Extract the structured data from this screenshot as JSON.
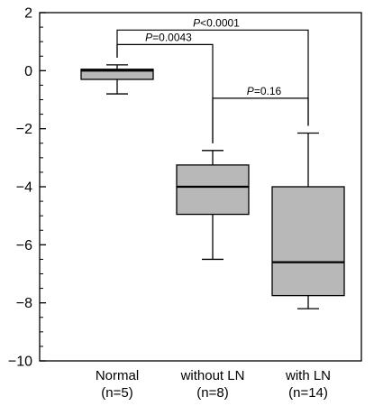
{
  "chart_data": {
    "type": "box",
    "ylim": [
      -10,
      2
    ],
    "yticks": [
      2,
      0,
      -2,
      -4,
      -6,
      -8,
      -10
    ],
    "ytick_labels": [
      "2",
      "0",
      "−2",
      "−4",
      "−6",
      "−8",
      "−10"
    ],
    "categories": [
      {
        "label": "Normal",
        "n_label": "(n=5)"
      },
      {
        "label": "without LN",
        "n_label": "(n=8)"
      },
      {
        "label": "with LN",
        "n_label": "(n=14)"
      }
    ],
    "boxes": [
      {
        "min": -0.8,
        "q1": -0.3,
        "median": 0.0,
        "q3": 0.05,
        "max": 0.2
      },
      {
        "min": -6.5,
        "q1": -4.95,
        "median": -4.0,
        "q3": -3.25,
        "max": -2.75
      },
      {
        "min": -8.2,
        "q1": -7.75,
        "median": -6.6,
        "q3": -4.0,
        "max": -2.15
      }
    ],
    "box_color": "#b8b8b8",
    "comparisons": [
      {
        "from": 0,
        "to": 2,
        "y": 1.4,
        "p_symbol": "P",
        "p_rest": "<0.0001"
      },
      {
        "from": 0,
        "to": 1,
        "y": 0.9,
        "p_symbol": "P",
        "p_rest": "=0.0043"
      },
      {
        "from": 1,
        "to": 2,
        "y": -0.95,
        "p_symbol": "P",
        "p_rest": "=0.16"
      }
    ]
  }
}
